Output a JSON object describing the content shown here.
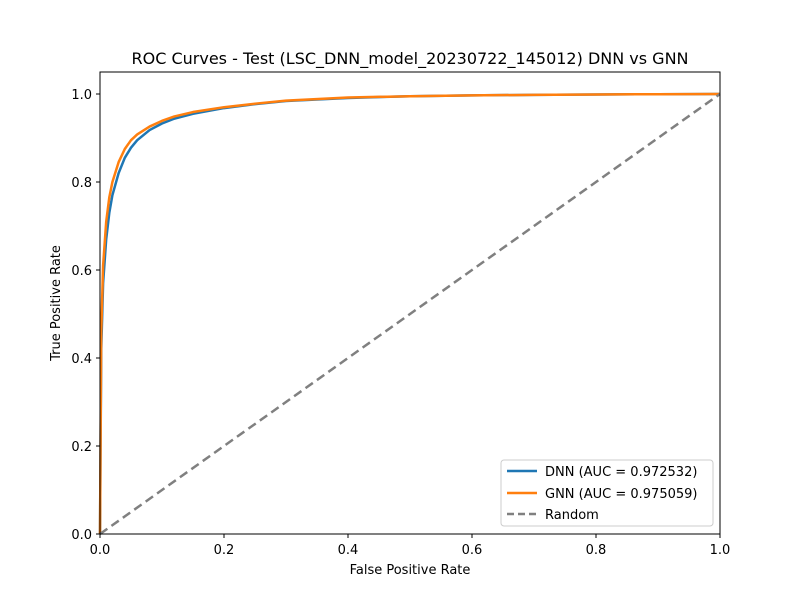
{
  "chart_data": {
    "type": "line",
    "title": "ROC Curves - Test (LSC_DNN_model_20230722_145012) DNN vs GNN",
    "xlabel": "False Positive Rate",
    "ylabel": "True Positive Rate",
    "xlim": [
      0.0,
      1.0
    ],
    "ylim": [
      0.0,
      1.05
    ],
    "xticks": [
      "0.0",
      "0.2",
      "0.4",
      "0.6",
      "0.8",
      "1.0"
    ],
    "yticks": [
      "0.0",
      "0.2",
      "0.4",
      "0.6",
      "0.8",
      "1.0"
    ],
    "grid": false,
    "legend_position": "lower-right",
    "series": [
      {
        "name": "DNN (AUC = 0.972532)",
        "color": "#1f77b4",
        "style": "solid",
        "x": [
          0.0,
          0.002,
          0.005,
          0.01,
          0.015,
          0.02,
          0.03,
          0.04,
          0.05,
          0.06,
          0.08,
          0.1,
          0.12,
          0.15,
          0.2,
          0.25,
          0.3,
          0.4,
          0.5,
          0.6,
          0.7,
          0.8,
          0.9,
          1.0
        ],
        "y": [
          0.0,
          0.42,
          0.57,
          0.67,
          0.73,
          0.77,
          0.82,
          0.855,
          0.878,
          0.895,
          0.918,
          0.933,
          0.944,
          0.955,
          0.968,
          0.977,
          0.984,
          0.991,
          0.995,
          0.997,
          0.998,
          0.999,
          0.9995,
          1.0
        ]
      },
      {
        "name": "GNN (AUC = 0.975059)",
        "color": "#ff7f0e",
        "style": "solid",
        "x": [
          0.0,
          0.002,
          0.005,
          0.01,
          0.015,
          0.02,
          0.03,
          0.04,
          0.05,
          0.06,
          0.08,
          0.1,
          0.12,
          0.15,
          0.2,
          0.25,
          0.3,
          0.4,
          0.5,
          0.6,
          0.7,
          0.8,
          0.9,
          1.0
        ],
        "y": [
          0.0,
          0.46,
          0.61,
          0.71,
          0.765,
          0.8,
          0.845,
          0.875,
          0.895,
          0.908,
          0.926,
          0.939,
          0.949,
          0.959,
          0.97,
          0.978,
          0.985,
          0.992,
          0.995,
          0.997,
          0.998,
          0.999,
          0.9995,
          1.0
        ]
      },
      {
        "name": "Random",
        "color": "#808080",
        "style": "dashed",
        "x": [
          0.0,
          1.0
        ],
        "y": [
          0.0,
          1.0
        ]
      }
    ]
  }
}
